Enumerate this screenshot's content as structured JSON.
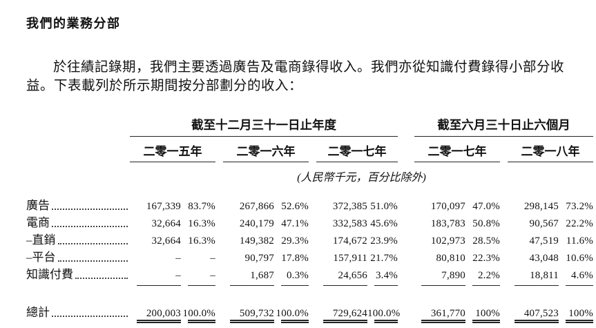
{
  "page": {
    "title": "我們的業務分部",
    "paragraph_line1": "於往績記錄期，我們主要透過廣告及電商錄得收入。我們亦從知識付費錄得小部分收",
    "paragraph_line2": "益。下表載列於所示期間按分部劃分的收入："
  },
  "table": {
    "group_headers": [
      "截至十二月三十一日止年度",
      "截至六月三十日止六個月"
    ],
    "year_headers": [
      "二零一五年",
      "二零一六年",
      "二零一七年",
      "二零一七年",
      "二零一八年"
    ],
    "unit_note": "(人民幣千元，百分比除外)",
    "rows": [
      {
        "label": "廣告",
        "values": [
          "167,339",
          "83.7%",
          "267,866",
          "52.6%",
          "372,385",
          "51.0%",
          "170,097",
          "47.0%",
          "298,145",
          "73.2%"
        ]
      },
      {
        "label": "電商",
        "values": [
          "32,664",
          "16.3%",
          "240,179",
          "47.1%",
          "332,583",
          "45.6%",
          "183,783",
          "50.8%",
          "90,567",
          "22.2%"
        ]
      },
      {
        "label": "–直銷",
        "values": [
          "32,664",
          "16.3%",
          "149,382",
          "29.3%",
          "174,672",
          "23.9%",
          "102,973",
          "28.5%",
          "47,519",
          "11.6%"
        ]
      },
      {
        "label": "–平台",
        "values": [
          "–",
          "–",
          "90,797",
          "17.8%",
          "157,911",
          "21.7%",
          "80,810",
          "22.3%",
          "43,048",
          "10.6%"
        ]
      },
      {
        "label": "知識付費",
        "values": [
          "–",
          "–",
          "1,687",
          "0.3%",
          "24,656",
          "3.4%",
          "7,890",
          "2.2%",
          "18,811",
          "4.6%"
        ]
      }
    ],
    "total": {
      "label": "總計",
      "values": [
        "200,003",
        "100.0%",
        "509,732",
        "100.0%",
        "729,624",
        "100.0%",
        "361,770",
        "100%",
        "407,523",
        "100%"
      ]
    }
  },
  "colors": {
    "background": "#ffffff",
    "text": "#111111",
    "rule": "#222222"
  }
}
